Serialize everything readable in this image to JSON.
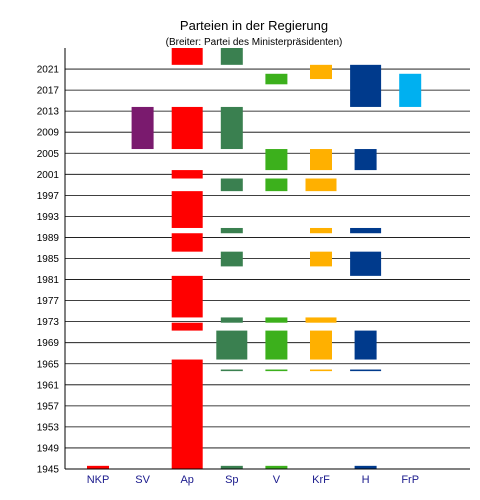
{
  "chart_data": {
    "type": "bar",
    "title": "Parteien in der Regierung",
    "subtitle": "(Breiter: Partei des Ministerpräsidenten)",
    "xlabel": "",
    "ylabel": "",
    "ylim": [
      1945,
      2025
    ],
    "yticks": [
      1945,
      1949,
      1953,
      1957,
      1961,
      1965,
      1969,
      1973,
      1977,
      1981,
      1985,
      1989,
      1993,
      1997,
      2001,
      2005,
      2009,
      2013,
      2017,
      2021
    ],
    "grid": true,
    "categories": [
      "NKP",
      "SV",
      "Ap",
      "Sp",
      "V",
      "KrF",
      "H",
      "FrP"
    ],
    "parties": [
      {
        "name": "NKP",
        "color": "#ff0000",
        "periods": [
          {
            "start": 1945.0,
            "end": 1945.6,
            "pm": false
          }
        ]
      },
      {
        "name": "SV",
        "color": "#7a1a6e",
        "periods": [
          {
            "start": 2005.8,
            "end": 2013.8,
            "pm": false
          }
        ]
      },
      {
        "name": "Ap",
        "color": "#ff0000",
        "periods": [
          {
            "start": 1945.0,
            "end": 1965.8,
            "pm": true
          },
          {
            "start": 1971.3,
            "end": 1972.8,
            "pm": true
          },
          {
            "start": 1973.8,
            "end": 1981.7,
            "pm": true
          },
          {
            "start": 1986.3,
            "end": 1989.8,
            "pm": true
          },
          {
            "start": 1990.8,
            "end": 1997.8,
            "pm": true
          },
          {
            "start": 2000.2,
            "end": 2001.8,
            "pm": true
          },
          {
            "start": 2005.8,
            "end": 2013.8,
            "pm": true
          },
          {
            "start": 2021.8,
            "end": 2025.0,
            "pm": true
          }
        ]
      },
      {
        "name": "Sp",
        "color": "#3a8050",
        "periods": [
          {
            "start": 1945.0,
            "end": 1945.6,
            "pm": false
          },
          {
            "start": 1963.6,
            "end": 1963.9,
            "pm": false
          },
          {
            "start": 1965.8,
            "end": 1971.3,
            "pm": true
          },
          {
            "start": 1972.8,
            "end": 1973.8,
            "pm": false
          },
          {
            "start": 1983.5,
            "end": 1986.3,
            "pm": false
          },
          {
            "start": 1989.8,
            "end": 1990.8,
            "pm": false
          },
          {
            "start": 1997.8,
            "end": 2000.2,
            "pm": false
          },
          {
            "start": 2005.8,
            "end": 2013.8,
            "pm": false
          },
          {
            "start": 2021.8,
            "end": 2025.0,
            "pm": false
          }
        ]
      },
      {
        "name": "V",
        "color": "#3cb01c",
        "periods": [
          {
            "start": 1945.0,
            "end": 1945.6,
            "pm": false
          },
          {
            "start": 1963.6,
            "end": 1963.9,
            "pm": false
          },
          {
            "start": 1965.8,
            "end": 1971.3,
            "pm": false
          },
          {
            "start": 1972.8,
            "end": 1973.8,
            "pm": false
          },
          {
            "start": 1997.8,
            "end": 2000.2,
            "pm": false
          },
          {
            "start": 2001.8,
            "end": 2005.8,
            "pm": false
          },
          {
            "start": 2018.1,
            "end": 2020.1,
            "pm": false
          }
        ]
      },
      {
        "name": "KrF",
        "color": "#ffb000",
        "periods": [
          {
            "start": 1963.6,
            "end": 1963.9,
            "pm": false
          },
          {
            "start": 1965.8,
            "end": 1971.3,
            "pm": false
          },
          {
            "start": 1972.8,
            "end": 1973.8,
            "pm": true
          },
          {
            "start": 1983.5,
            "end": 1986.3,
            "pm": false
          },
          {
            "start": 1989.8,
            "end": 1990.8,
            "pm": false
          },
          {
            "start": 1997.8,
            "end": 2000.2,
            "pm": true
          },
          {
            "start": 2001.8,
            "end": 2005.8,
            "pm": false
          },
          {
            "start": 2019.1,
            "end": 2021.8,
            "pm": false
          }
        ]
      },
      {
        "name": "H",
        "color": "#003a8c",
        "periods": [
          {
            "start": 1945.0,
            "end": 1945.6,
            "pm": false
          },
          {
            "start": 1963.6,
            "end": 1963.9,
            "pm": true
          },
          {
            "start": 1965.8,
            "end": 1971.3,
            "pm": false
          },
          {
            "start": 1981.7,
            "end": 1986.3,
            "pm": true
          },
          {
            "start": 1989.8,
            "end": 1990.8,
            "pm": true
          },
          {
            "start": 2001.8,
            "end": 2005.8,
            "pm": false
          },
          {
            "start": 2013.8,
            "end": 2021.8,
            "pm": true
          }
        ]
      },
      {
        "name": "FrP",
        "color": "#00b0f0",
        "periods": [
          {
            "start": 2013.8,
            "end": 2020.1,
            "pm": false
          }
        ]
      }
    ]
  }
}
